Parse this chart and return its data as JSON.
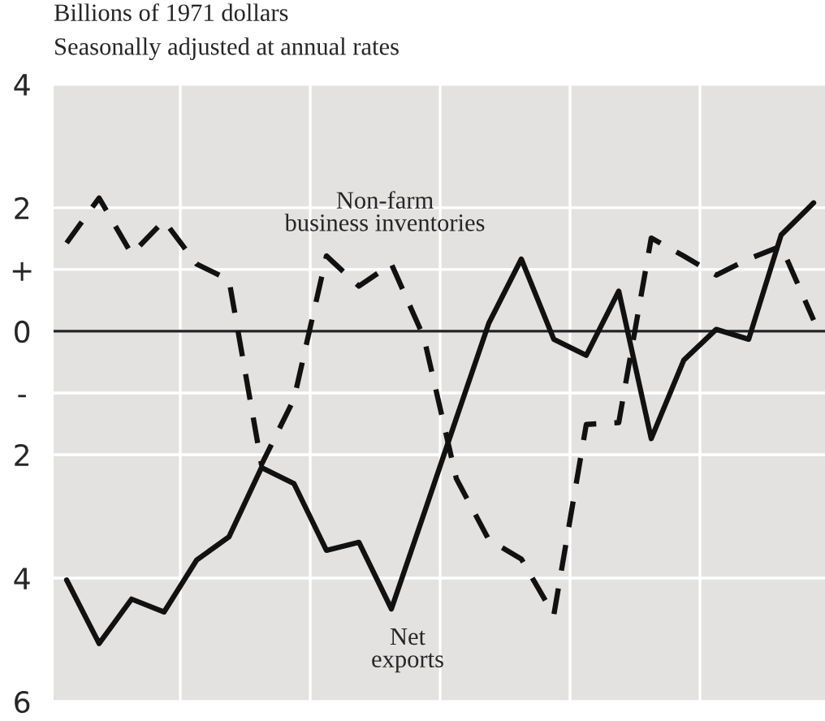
{
  "chart_data": {
    "type": "line",
    "title": "Billions of 1971 dollars",
    "subtitle": "Seasonally adjusted at annual rates",
    "categories": [
      null,
      null,
      null,
      null,
      null,
      null,
      null,
      null,
      null,
      null,
      null,
      null,
      null,
      null,
      null,
      null,
      null,
      null,
      null,
      null,
      null,
      null,
      null,
      null
    ],
    "series": [
      {
        "name": "Non-farm\nbusiness inventories",
        "color": "#111111",
        "line_style": "dashed",
        "values": [
          1.43,
          2.16,
          1.25,
          1.79,
          1.09,
          0.83,
          -2.16,
          -1.1,
          1.22,
          0.73,
          1.09,
          -0.1,
          -2.39,
          -3.38,
          -3.69,
          -4.6,
          -1.51,
          -1.48,
          1.51,
          1.22,
          0.91,
          1.17,
          1.38,
          0.18
        ]
      },
      {
        "name": "Net\nexports",
        "color": "#111111",
        "line_style": "solid",
        "values": [
          -4.03,
          -5.06,
          -4.34,
          -4.55,
          -3.71,
          -3.33,
          -2.21,
          -2.47,
          -3.55,
          -3.42,
          -4.5,
          -2.96,
          -1.41,
          0.13,
          1.17,
          -0.13,
          -0.39,
          0.65,
          -1.74,
          -0.47,
          0.03,
          -0.13,
          1.56,
          2.08
        ]
      }
    ],
    "ylim": [
      -6,
      4
    ],
    "yticks": [
      4,
      2,
      {
        "value": 1,
        "label": "+"
      },
      0,
      {
        "value": -1,
        "label": "-"
      },
      {
        "value": -2,
        "label": "2"
      },
      {
        "value": -4,
        "label": "4"
      },
      {
        "value": -6,
        "label": "6"
      }
    ],
    "ref_lines": [
      {
        "axis": "y",
        "value": 0,
        "color": "#222222"
      }
    ],
    "grid": true
  }
}
